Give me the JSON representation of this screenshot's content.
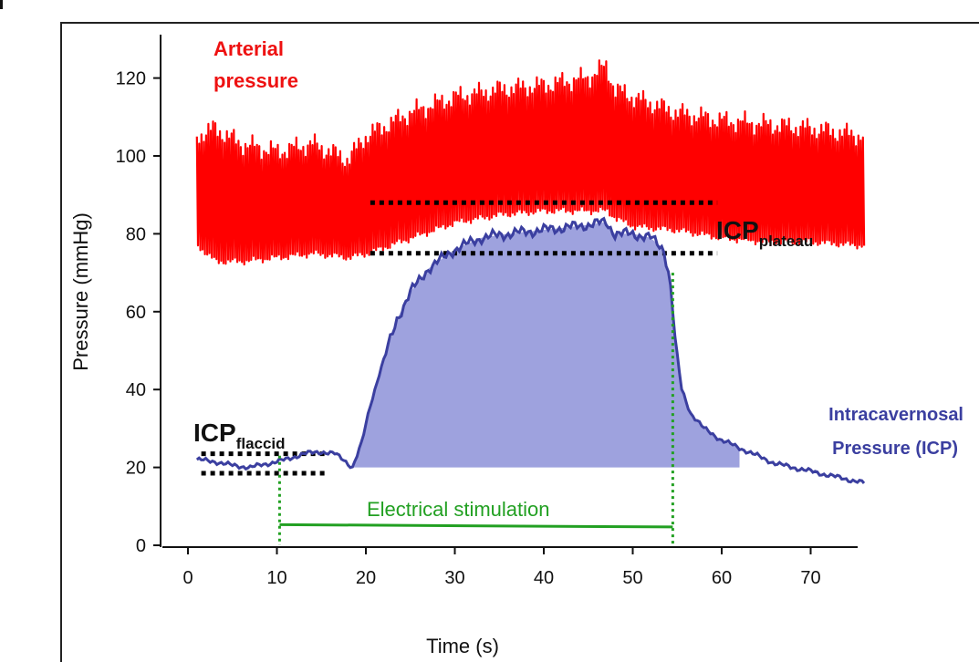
{
  "chart_data": {
    "type": "line",
    "xlabel": "Time (s)",
    "ylabel": "Pressure (mmHg)",
    "xlim": [
      0,
      75
    ],
    "ylim": [
      0,
      130
    ],
    "xticks": [
      "0",
      "10",
      "20",
      "30",
      "40",
      "50",
      "60",
      "70"
    ],
    "yticks": [
      "0",
      "20",
      "40",
      "60",
      "80",
      "100",
      "120"
    ],
    "grid": false,
    "arterial": {
      "label_lines": [
        "Arterial",
        "pressure"
      ],
      "color": "#ff0000",
      "t": [
        1,
        3,
        6,
        10,
        14,
        18,
        20,
        25,
        30,
        35,
        40,
        45,
        47,
        48,
        50,
        55,
        60,
        65,
        70,
        76
      ],
      "lower": [
        76,
        72,
        72,
        73,
        74,
        73,
        74,
        78,
        82,
        84,
        85,
        85,
        85,
        83,
        81,
        80,
        78,
        77,
        77,
        76
      ],
      "upper": [
        108,
        110,
        106,
        104,
        106,
        102,
        108,
        114,
        118,
        120,
        121,
        123,
        126,
        120,
        118,
        114,
        112,
        111,
        110,
        108
      ]
    },
    "icp": {
      "label_lines": [
        "Intracavernosal",
        "Pressure (ICP)"
      ],
      "color": "#3b3fa0",
      "fill_color": "#9ea2de",
      "t": [
        1,
        3,
        5,
        7,
        9,
        11,
        13,
        15,
        16.5,
        17.5,
        18.5,
        19.5,
        20.5,
        21.5,
        22.5,
        23.5,
        25,
        27,
        30,
        33,
        36,
        40,
        44,
        47,
        48,
        50,
        52,
        53.5,
        54.2,
        54.8,
        55.5,
        56.5,
        58,
        60,
        62,
        64,
        66,
        68,
        70,
        72,
        74,
        76
      ],
      "values": [
        22,
        21.5,
        20.5,
        20,
        21,
        22,
        23.5,
        24,
        23.5,
        22,
        20,
        26,
        36,
        44,
        51,
        58,
        65,
        71,
        76,
        79,
        80,
        81,
        82,
        83,
        80,
        80,
        79,
        76,
        68,
        52,
        40,
        34,
        30,
        27,
        25,
        23,
        21,
        20,
        19,
        18,
        17,
        16
      ]
    },
    "plateau_lines": [
      88,
      75
    ],
    "plateau_range": [
      20.5,
      59.5
    ],
    "flaccid_lines": [
      23.5,
      18.5
    ],
    "flaccid_range": [
      1.5,
      15.5
    ],
    "icp_plateau_label": {
      "main": "ICP",
      "sub": "plateau"
    },
    "icp_flaccid_label": {
      "main": "ICP",
      "sub": "flaccid"
    },
    "stimulation": {
      "label": "Electrical stimulation",
      "start": 10.3,
      "end": 54.5,
      "level": 5,
      "color": "#22a022"
    }
  }
}
